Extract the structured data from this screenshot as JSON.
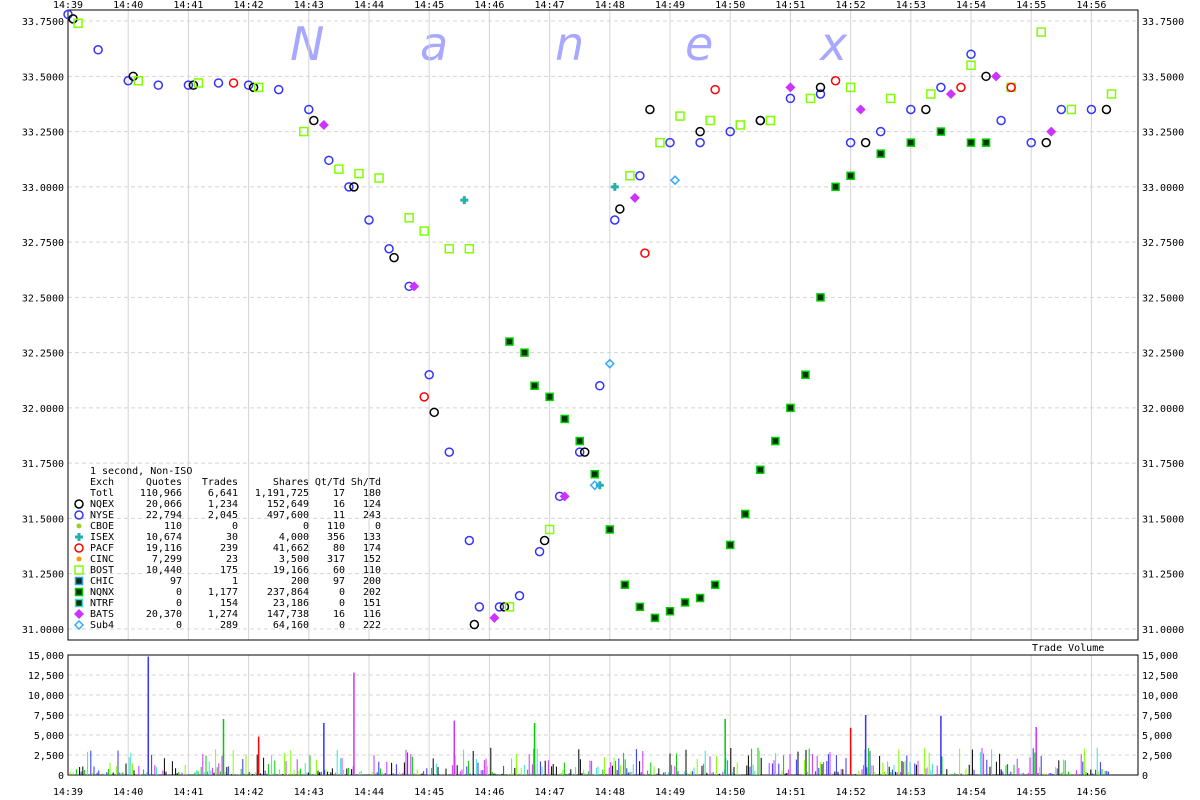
{
  "watermark": [
    "N",
    "a",
    "n",
    "e",
    "x"
  ],
  "chart_data": [
    {
      "type": "scatter",
      "title": "",
      "x_ticks": [
        "14:39",
        "14:40",
        "14:41",
        "14:42",
        "14:43",
        "14:44",
        "14:45",
        "14:46",
        "14:47",
        "14:48",
        "14:49",
        "14:50",
        "14:51",
        "14:52",
        "14:53",
        "14:54",
        "14:55",
        "14:56"
      ],
      "xlim": [
        "14:39",
        "14:56:50"
      ],
      "ylim": [
        30.95,
        33.8
      ],
      "y_ticks": [
        "31.0000",
        "31.2500",
        "31.5000",
        "31.7500",
        "32.0000",
        "32.2500",
        "32.5000",
        "32.7500",
        "33.0000",
        "33.2500",
        "33.5000",
        "33.7500"
      ],
      "grid": true,
      "legend_placement": "lower-left",
      "legend_title": "1 second, Non-ISO",
      "legend_headers": [
        "Exch",
        "Quotes",
        "Trades",
        "Shares",
        "Qt/Td",
        "Sh/Td"
      ],
      "legend_rows": [
        {
          "exch": "Totl",
          "quotes": "110,966",
          "trades": "6,641",
          "shares": "1,191,725",
          "qt_td": "17",
          "sh_td": "180",
          "color": "",
          "marker": "none"
        },
        {
          "exch": "NQEX",
          "quotes": "20,066",
          "trades": "1,234",
          "shares": "152,649",
          "qt_td": "16",
          "sh_td": "124",
          "color": "#000000",
          "marker": "circle"
        },
        {
          "exch": "NYSE",
          "quotes": "22,794",
          "trades": "2,045",
          "shares": "497,600",
          "qt_td": "11",
          "sh_td": "243",
          "color": "#3333ff",
          "marker": "circle"
        },
        {
          "exch": "CBOE",
          "quotes": "110",
          "trades": "0",
          "shares": "0",
          "qt_td": "110",
          "sh_td": "0",
          "color": "#9acd32",
          "marker": "small-circle"
        },
        {
          "exch": "ISEX",
          "quotes": "10,674",
          "trades": "30",
          "shares": "4,000",
          "qt_td": "356",
          "sh_td": "133",
          "color": "#20b2aa",
          "marker": "cross"
        },
        {
          "exch": "PACF",
          "quotes": "19,116",
          "trades": "239",
          "shares": "41,662",
          "qt_td": "80",
          "sh_td": "174",
          "color": "#ff0000",
          "marker": "circle"
        },
        {
          "exch": "CINC",
          "quotes": "7,299",
          "trades": "23",
          "shares": "3,500",
          "qt_td": "317",
          "sh_td": "152",
          "color": "#ff9900",
          "marker": "small-circle"
        },
        {
          "exch": "BOST",
          "quotes": "10,440",
          "trades": "175",
          "shares": "19,166",
          "qt_td": "60",
          "sh_td": "110",
          "color": "#7fff00",
          "marker": "square"
        },
        {
          "exch": "CHIC",
          "quotes": "97",
          "trades": "1",
          "shares": "200",
          "qt_td": "97",
          "sh_td": "200",
          "color": "#3399ff",
          "marker": "small-square"
        },
        {
          "exch": "NQNX",
          "quotes": "0",
          "trades": "1,177",
          "shares": "237,864",
          "qt_td": "0",
          "sh_td": "202",
          "color": "#00cc00",
          "marker": "small-square"
        },
        {
          "exch": "NTRF",
          "quotes": "0",
          "trades": "154",
          "shares": "23,186",
          "qt_td": "0",
          "sh_td": "151",
          "color": "#40e0d0",
          "marker": "small-square"
        },
        {
          "exch": "BATS",
          "quotes": "20,370",
          "trades": "1,274",
          "shares": "147,738",
          "qt_td": "16",
          "sh_td": "116",
          "color": "#cc33ff",
          "marker": "diamond"
        },
        {
          "exch": "Sub4",
          "quotes": "0",
          "trades": "289",
          "shares": "64,160",
          "qt_td": "0",
          "sh_td": "222",
          "color": "#33aaff",
          "marker": "small-diamond"
        }
      ],
      "series": [
        {
          "exchange": "NYSE",
          "color": "#3333ff",
          "marker": "circle",
          "x": [
            "14:39:00",
            "14:39:30",
            "14:40:00",
            "14:40:30",
            "14:41:00",
            "14:41:30",
            "14:42:00",
            "14:42:30",
            "14:43:00",
            "14:43:20",
            "14:43:40",
            "14:44:00",
            "14:44:20",
            "14:44:40",
            "14:45:00",
            "14:45:20",
            "14:45:40",
            "14:45:50",
            "14:46:10",
            "14:46:30",
            "14:46:50",
            "14:47:10",
            "14:47:30",
            "14:47:50",
            "14:48:05",
            "14:48:30",
            "14:49:00",
            "14:49:30",
            "14:50:00",
            "14:50:30",
            "14:51:00",
            "14:51:30",
            "14:52:00",
            "14:52:30",
            "14:53:00",
            "14:53:30",
            "14:54:00",
            "14:54:30",
            "14:55:00",
            "14:55:30",
            "14:56:00"
          ],
          "y": [
            33.78,
            33.62,
            33.48,
            33.46,
            33.46,
            33.47,
            33.46,
            33.44,
            33.35,
            33.12,
            33.0,
            32.85,
            32.72,
            32.55,
            32.15,
            31.8,
            31.4,
            31.1,
            31.1,
            31.15,
            31.35,
            31.6,
            31.8,
            32.1,
            32.85,
            33.05,
            33.2,
            33.2,
            33.25,
            33.3,
            33.4,
            33.42,
            33.2,
            33.25,
            33.35,
            33.45,
            33.6,
            33.3,
            33.2,
            33.35,
            33.35
          ]
        },
        {
          "exchange": "NQEX",
          "color": "#000000",
          "marker": "circle",
          "x": [
            "14:39:05",
            "14:40:05",
            "14:41:05",
            "14:42:05",
            "14:43:05",
            "14:43:45",
            "14:44:25",
            "14:45:05",
            "14:45:45",
            "14:46:15",
            "14:46:55",
            "14:47:35",
            "14:48:10",
            "14:48:40",
            "14:49:30",
            "14:50:30",
            "14:51:30",
            "14:52:15",
            "14:53:15",
            "14:54:15",
            "14:55:15",
            "14:56:15"
          ],
          "y": [
            33.76,
            33.5,
            33.46,
            33.45,
            33.3,
            33.0,
            32.68,
            31.98,
            31.02,
            31.1,
            31.4,
            31.8,
            32.9,
            33.35,
            33.25,
            33.3,
            33.45,
            33.2,
            33.35,
            33.5,
            33.2,
            33.35
          ]
        },
        {
          "exchange": "BOST",
          "color": "#7fff00",
          "marker": "square",
          "x": [
            "14:39:10",
            "14:40:10",
            "14:41:10",
            "14:42:10",
            "14:42:55",
            "14:43:30",
            "14:43:50",
            "14:44:10",
            "14:44:40",
            "14:44:55",
            "14:45:20",
            "14:45:40",
            "14:46:20",
            "14:47:00",
            "14:48:20",
            "14:48:50",
            "14:49:10",
            "14:49:40",
            "14:50:10",
            "14:50:40",
            "14:51:20",
            "14:52:00",
            "14:52:40",
            "14:53:20",
            "14:54:00",
            "14:54:40",
            "14:55:10",
            "14:55:40",
            "14:56:20"
          ],
          "y": [
            33.74,
            33.48,
            33.47,
            33.45,
            33.25,
            33.08,
            33.06,
            33.04,
            32.86,
            32.8,
            32.72,
            32.72,
            31.1,
            31.45,
            33.05,
            33.2,
            33.32,
            33.3,
            33.28,
            33.3,
            33.4,
            33.45,
            33.4,
            33.42,
            33.55,
            33.45,
            33.7,
            33.35,
            33.42
          ]
        },
        {
          "exchange": "NQNX",
          "color": "#00cc00",
          "marker": "small-square",
          "x": [
            "14:46:20",
            "14:46:35",
            "14:46:45",
            "14:47:00",
            "14:47:15",
            "14:47:30",
            "14:47:45",
            "14:48:00",
            "14:48:15",
            "14:48:30",
            "14:48:45",
            "14:49:00",
            "14:49:15",
            "14:49:30",
            "14:49:45",
            "14:50:00",
            "14:50:15",
            "14:50:30",
            "14:50:45",
            "14:51:00",
            "14:51:15",
            "14:51:30",
            "14:51:45",
            "14:52:00",
            "14:52:30",
            "14:53:00",
            "14:53:30",
            "14:54:00",
            "14:54:15"
          ],
          "y": [
            32.3,
            32.25,
            32.1,
            32.05,
            31.95,
            31.85,
            31.7,
            31.45,
            31.2,
            31.1,
            31.05,
            31.08,
            31.12,
            31.14,
            31.2,
            31.38,
            31.52,
            31.72,
            31.85,
            32.0,
            32.15,
            32.5,
            33.0,
            33.05,
            33.15,
            33.2,
            33.25,
            33.2,
            33.2
          ]
        },
        {
          "exchange": "PACF",
          "color": "#ff0000",
          "marker": "circle",
          "x": [
            "14:41:45",
            "14:44:55",
            "14:48:35",
            "14:49:45",
            "14:51:45",
            "14:53:50",
            "14:54:40"
          ],
          "y": [
            33.47,
            32.05,
            32.7,
            33.44,
            33.48,
            33.45,
            33.45
          ]
        },
        {
          "exchange": "BATS",
          "color": "#cc33ff",
          "marker": "diamond",
          "x": [
            "14:43:15",
            "14:44:45",
            "14:46:05",
            "14:47:15",
            "14:48:25",
            "14:51:00",
            "14:52:10",
            "14:53:40",
            "14:54:25",
            "14:55:20"
          ],
          "y": [
            33.28,
            32.55,
            31.05,
            31.6,
            32.95,
            33.45,
            33.35,
            33.42,
            33.5,
            33.25
          ]
        },
        {
          "exchange": "ISEX",
          "color": "#20b2aa",
          "marker": "cross",
          "x": [
            "14:45:35",
            "14:47:50",
            "14:48:05"
          ],
          "y": [
            32.94,
            31.65,
            33.0
          ]
        },
        {
          "exchange": "Sub4",
          "color": "#33aaff",
          "marker": "small-diamond",
          "x": [
            "14:47:45",
            "14:48:00",
            "14:49:05"
          ],
          "y": [
            31.65,
            32.2,
            33.03
          ]
        }
      ]
    },
    {
      "type": "bar",
      "title": "Trade Volume",
      "x_ticks": [
        "14:39",
        "14:40",
        "14:41",
        "14:42",
        "14:43",
        "14:44",
        "14:45",
        "14:46",
        "14:47",
        "14:48",
        "14:49",
        "14:50",
        "14:51",
        "14:52",
        "14:53",
        "14:54",
        "14:55",
        "14:56"
      ],
      "ylim": [
        0,
        15000
      ],
      "y_ticks": [
        "0",
        "2,500",
        "5,000",
        "7,500",
        "10,000",
        "12,500",
        "15,000"
      ],
      "grid": true,
      "peaks": [
        {
          "x": "14:40:20",
          "value": 14800,
          "color": "#3333ff"
        },
        {
          "x": "14:43:45",
          "value": 12800,
          "color": "#cc33ff"
        },
        {
          "x": "14:41:35",
          "value": 7000,
          "color": "#00cc00"
        },
        {
          "x": "14:43:15",
          "value": 6500,
          "color": "#3333ff"
        },
        {
          "x": "14:45:25",
          "value": 6800,
          "color": "#cc33ff"
        },
        {
          "x": "14:46:45",
          "value": 6500,
          "color": "#00cc00"
        },
        {
          "x": "14:49:55",
          "value": 7000,
          "color": "#00cc00"
        },
        {
          "x": "14:52:15",
          "value": 7500,
          "color": "#3333ff"
        },
        {
          "x": "14:53:30",
          "value": 7400,
          "color": "#3333ff"
        },
        {
          "x": "14:55:05",
          "value": 6000,
          "color": "#cc33ff"
        },
        {
          "x": "14:52:00",
          "value": 5900,
          "color": "#ff0000"
        },
        {
          "x": "14:42:10",
          "value": 4800,
          "color": "#ff0000"
        }
      ]
    }
  ]
}
